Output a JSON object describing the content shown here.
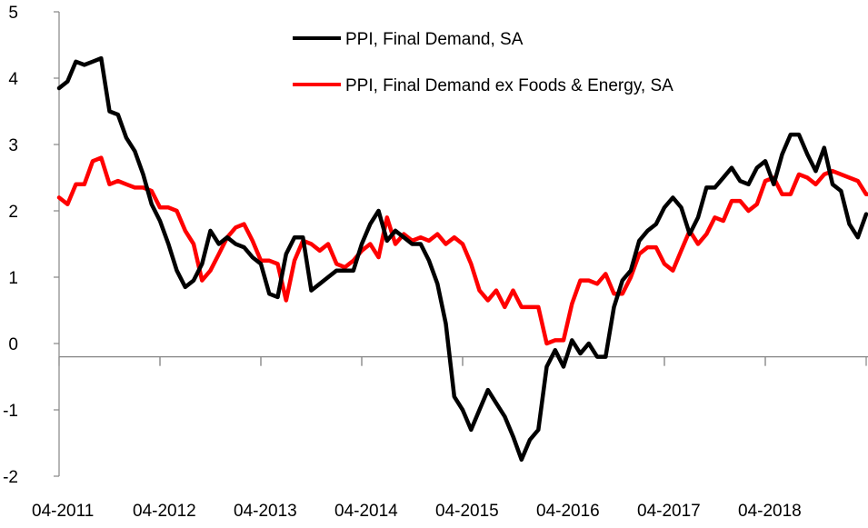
{
  "chart_data": {
    "type": "line",
    "title": "",
    "xlabel": "",
    "ylabel": "",
    "ylim": [
      -2,
      5
    ],
    "yticks": [
      5,
      4,
      3,
      2,
      1,
      0,
      -1,
      -2
    ],
    "ytick_labels": [
      "5",
      "4",
      "3",
      "2",
      "1",
      "0",
      "-1",
      "-2"
    ],
    "xtick_labels": [
      "04-2011",
      "04-2012",
      "04-2013",
      "04-2014",
      "04-2015",
      "04-2016",
      "04-2017",
      "04-2018"
    ],
    "x_start": "04-2011",
    "x_end": "12-2018",
    "x_axis_crosses_at": -0.2,
    "grid": false,
    "legend_position": "top-center",
    "series": [
      {
        "name": "PPI, Final Demand, SA",
        "color": "#000000",
        "values": [
          3.85,
          3.95,
          4.25,
          4.2,
          4.25,
          4.3,
          3.5,
          3.45,
          3.1,
          2.9,
          2.55,
          2.1,
          1.85,
          1.5,
          1.1,
          0.85,
          0.95,
          1.2,
          1.7,
          1.5,
          1.6,
          1.5,
          1.45,
          1.3,
          1.2,
          0.75,
          0.7,
          1.35,
          1.6,
          1.6,
          0.8,
          0.9,
          1.0,
          1.1,
          1.1,
          1.1,
          1.5,
          1.8,
          2.0,
          1.55,
          1.7,
          1.6,
          1.5,
          1.5,
          1.25,
          0.9,
          0.3,
          -0.8,
          -1.0,
          -1.3,
          -1.0,
          -0.7,
          -0.9,
          -1.1,
          -1.4,
          -1.75,
          -1.45,
          -1.3,
          -0.35,
          -0.1,
          -0.35,
          0.05,
          -0.15,
          0.0,
          -0.2,
          -0.2,
          0.55,
          0.95,
          1.1,
          1.55,
          1.7,
          1.8,
          2.05,
          2.2,
          2.05,
          1.65,
          1.9,
          2.35,
          2.35,
          2.5,
          2.65,
          2.45,
          2.4,
          2.65,
          2.75,
          2.4,
          2.85,
          3.15,
          3.15,
          2.85,
          2.6,
          2.95,
          2.4,
          2.3,
          1.8,
          1.6,
          1.95
        ]
      },
      {
        "name": "PPI, Final Demand ex Foods & Energy, SA",
        "color": "#ff0000",
        "values": [
          2.2,
          2.1,
          2.4,
          2.4,
          2.75,
          2.8,
          2.4,
          2.45,
          2.4,
          2.35,
          2.35,
          2.3,
          2.05,
          2.05,
          2.0,
          1.7,
          1.5,
          0.95,
          1.1,
          1.35,
          1.6,
          1.75,
          1.8,
          1.55,
          1.25,
          1.25,
          1.2,
          0.65,
          1.25,
          1.55,
          1.5,
          1.4,
          1.5,
          1.2,
          1.15,
          1.25,
          1.4,
          1.5,
          1.3,
          1.9,
          1.5,
          1.65,
          1.55,
          1.6,
          1.55,
          1.65,
          1.5,
          1.6,
          1.5,
          1.2,
          0.8,
          0.65,
          0.8,
          0.55,
          0.8,
          0.55,
          0.55,
          0.55,
          0.0,
          0.05,
          0.05,
          0.6,
          0.95,
          0.95,
          0.9,
          1.05,
          0.75,
          0.75,
          1.0,
          1.35,
          1.45,
          1.45,
          1.2,
          1.1,
          1.4,
          1.7,
          1.5,
          1.65,
          1.9,
          1.85,
          2.15,
          2.15,
          2.0,
          2.1,
          2.45,
          2.5,
          2.25,
          2.25,
          2.55,
          2.5,
          2.4,
          2.55,
          2.6,
          2.55,
          2.5,
          2.45,
          2.25,
          2.25
        ]
      }
    ]
  }
}
